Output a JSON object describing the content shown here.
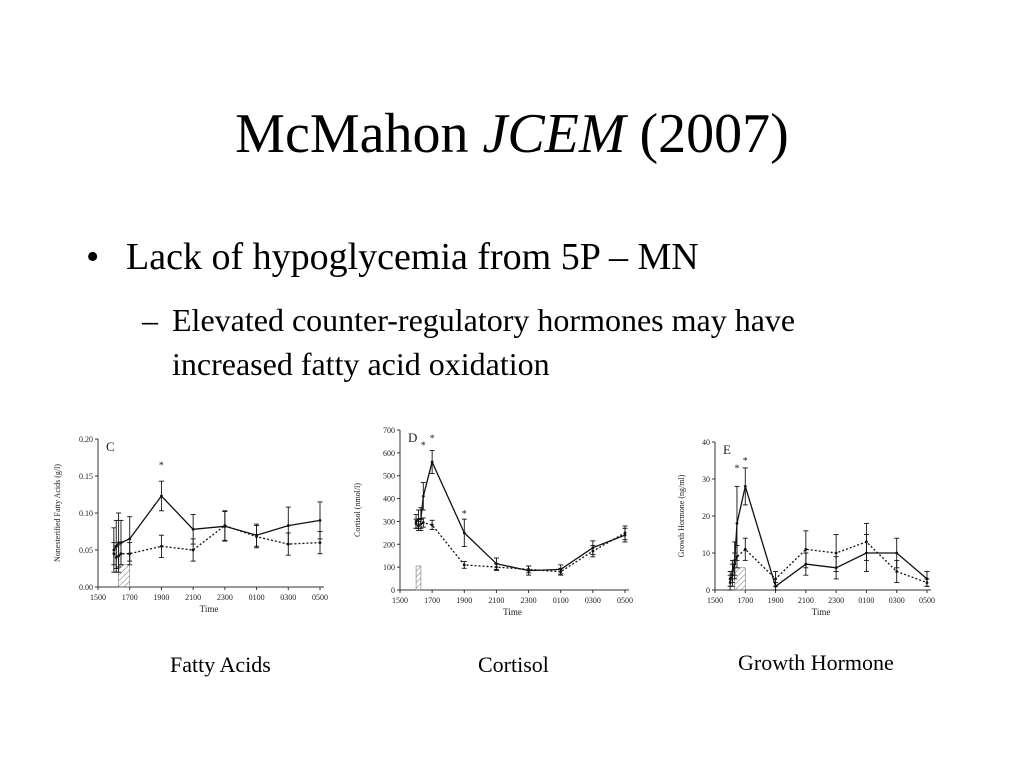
{
  "slide": {
    "title_prefix": "McMahon ",
    "title_italic": "JCEM",
    "title_suffix": " (2007)",
    "bullet": "Lack of hypoglycemia from 5P – MN",
    "sub_bullet": "Elevated counter-regulatory hormones may have increased fatty acid oxidation",
    "bullet_symbol": "•",
    "dash_symbol": "–"
  },
  "captions": [
    "Fatty Acids",
    "Cortisol",
    "Growth Hormone"
  ],
  "chart_data": [
    {
      "type": "line",
      "panel_label": "C",
      "xlabel": "Time",
      "ylabel": "Nonesterified Fatty Acids (g/l)",
      "x_ticks": [
        "1500",
        "1700",
        "1900",
        "2100",
        "2300",
        "0100",
        "0300",
        "0500"
      ],
      "y_ticks": [
        "0.00",
        "0.05",
        "0.10",
        "0.15",
        "0.20"
      ],
      "ylim": [
        0,
        0.2
      ],
      "x_range": [
        1500,
        2900
      ],
      "shaded_interval": [
        1630,
        1700
      ],
      "asterisks": [
        {
          "x": 1900,
          "y": 0.16
        }
      ],
      "series": [
        {
          "style": "solid",
          "x": [
            1600,
            1615,
            1630,
            1645,
            1700,
            1900,
            2100,
            2300,
            2500,
            2700,
            2900
          ],
          "values": [
            0.05,
            0.055,
            0.06,
            0.06,
            0.065,
            0.123,
            0.078,
            0.082,
            0.07,
            0.083,
            0.09
          ],
          "errors": [
            0.03,
            0.035,
            0.04,
            0.03,
            0.03,
            0.02,
            0.02,
            0.02,
            0.015,
            0.025,
            0.025
          ]
        },
        {
          "style": "dotted",
          "x": [
            1600,
            1615,
            1630,
            1645,
            1700,
            1900,
            2100,
            2300,
            2500,
            2700,
            2900
          ],
          "values": [
            0.045,
            0.04,
            0.042,
            0.045,
            0.045,
            0.055,
            0.05,
            0.083,
            0.068,
            0.058,
            0.06
          ],
          "errors": [
            0.015,
            0.015,
            0.015,
            0.015,
            0.015,
            0.015,
            0.015,
            0.02,
            0.015,
            0.015,
            0.015
          ]
        }
      ]
    },
    {
      "type": "line",
      "panel_label": "D",
      "xlabel": "Time",
      "ylabel": "Cortisol (nmol/l)",
      "x_ticks": [
        "1500",
        "1700",
        "1900",
        "2100",
        "2300",
        "0100",
        "0300",
        "0500"
      ],
      "y_ticks": [
        "0",
        "100",
        "200",
        "300",
        "400",
        "500",
        "600",
        "700"
      ],
      "ylim": [
        0,
        700
      ],
      "x_range": [
        1500,
        2900
      ],
      "shaded_interval": [
        1600,
        1630
      ],
      "asterisks": [
        {
          "x": 1645,
          "y": 620
        },
        {
          "x": 1700,
          "y": 650
        },
        {
          "x": 1900,
          "y": 320
        }
      ],
      "series": [
        {
          "style": "solid",
          "x": [
            1600,
            1615,
            1630,
            1645,
            1700,
            1900,
            2100,
            2300,
            2500,
            2700,
            2900
          ],
          "values": [
            300,
            310,
            310,
            410,
            560,
            250,
            115,
            85,
            90,
            185,
            240
          ],
          "errors": [
            30,
            40,
            50,
            60,
            50,
            60,
            25,
            20,
            20,
            30,
            30
          ]
        },
        {
          "style": "dotted",
          "x": [
            1600,
            1615,
            1630,
            1645,
            1700,
            1900,
            2100,
            2300,
            2500,
            2700,
            2900
          ],
          "values": [
            290,
            280,
            290,
            295,
            285,
            110,
            100,
            90,
            80,
            170,
            250
          ],
          "errors": [
            20,
            20,
            20,
            20,
            20,
            15,
            15,
            15,
            15,
            25,
            30
          ]
        }
      ]
    },
    {
      "type": "line",
      "panel_label": "E",
      "xlabel": "Time",
      "ylabel": "Growth Hormone (ng/ml)",
      "x_ticks": [
        "1500",
        "1700",
        "1900",
        "2100",
        "2300",
        "0100",
        "0300",
        "0500"
      ],
      "y_ticks": [
        "0",
        "10",
        "20",
        "30",
        "40"
      ],
      "ylim": [
        0,
        40
      ],
      "x_range": [
        1500,
        2900
      ],
      "shaded_interval": [
        1630,
        1700
      ],
      "asterisks": [
        {
          "x": 1645,
          "y": 32
        },
        {
          "x": 1700,
          "y": 34
        }
      ],
      "series": [
        {
          "style": "solid",
          "x": [
            1600,
            1615,
            1630,
            1645,
            1700,
            1900,
            2100,
            2300,
            2500,
            2700,
            2900
          ],
          "values": [
            2,
            4,
            8,
            18,
            28,
            1,
            7,
            6,
            10,
            10,
            3
          ],
          "errors": [
            2,
            3,
            5,
            10,
            5,
            1,
            3,
            3,
            5,
            4,
            2
          ]
        },
        {
          "style": "dotted",
          "x": [
            1600,
            1615,
            1630,
            1645,
            1700,
            1900,
            2100,
            2300,
            2500,
            2700,
            2900
          ],
          "values": [
            3,
            5,
            7,
            9,
            11,
            3,
            11,
            10,
            13,
            5,
            2
          ],
          "errors": [
            2,
            3,
            3,
            3,
            3,
            2,
            5,
            5,
            5,
            3,
            1
          ]
        }
      ]
    }
  ]
}
